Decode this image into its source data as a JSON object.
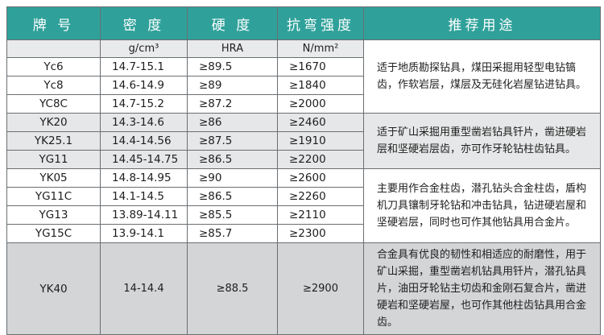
{
  "headers": {
    "grade": "牌 号",
    "density": "密 度",
    "hardness": "硬 度",
    "strength": "抗弯强度",
    "use": "推荐用途"
  },
  "units": {
    "density": "g/cm³",
    "hardness": "HRA",
    "strength": "N/mm²"
  },
  "groups": [
    {
      "use": "适于地质勘探钻具，煤田采掘用轻型电钻镐齿，作软岩层，煤层及无硅化岩屋钻进钻具。",
      "rows": [
        {
          "grade": "Yc6",
          "density": "14.7-15.1",
          "hardness": "≥89.5",
          "strength": "≥1670"
        },
        {
          "grade": "Yc8",
          "density": "14.6-14.9",
          "hardness": "≥89",
          "strength": "≥1840"
        },
        {
          "grade": "YC8C",
          "density": "14.7-15.2",
          "hardness": "≥87.2",
          "strength": "≥2000"
        }
      ]
    },
    {
      "use": "适于矿山采掘用重型凿岩钻具钎片，凿进硬岩层和坚硬岩层齿，亦可作牙轮钻柱齿钻具。",
      "rows": [
        {
          "grade": "YK20",
          "density": "14.3-14.6",
          "hardness": "≥86",
          "strength": "≥2460"
        },
        {
          "grade": "YK25.1",
          "density": "14.4-14.56",
          "hardness": "≥87.5",
          "strength": "≥1910"
        },
        {
          "grade": "YG11",
          "density": "14.45-14.75",
          "hardness": "≥86.5",
          "strength": "≥2200"
        }
      ]
    },
    {
      "use": "主要用作合金柱齿，潜孔钻头合金柱齿，盾构机刀具镶制牙轮钻和冲击钻具，钻进硬岩屋和坚硬岩层，同时也可作其他钻具用合金片。",
      "rows": [
        {
          "grade": "YK05",
          "density": "14.8-14.95",
          "hardness": "≥90",
          "strength": "≥2600"
        },
        {
          "grade": "YG11C",
          "density": "14.1-14.5",
          "hardness": "≥86.5",
          "strength": "≥2260"
        },
        {
          "grade": "YG13",
          "density": "13.89-14.11",
          "hardness": "≥85.5",
          "strength": "≥2110"
        },
        {
          "grade": "YG15C",
          "density": "13.9-14.1",
          "hardness": "≥85.7",
          "strength": "≥2300"
        }
      ]
    },
    {
      "use": "合金具有优良的韧性和相适应的耐磨性，用于矿山采掘，重型凿岩机钻具用钎片，潜孔钻具片，油田牙轮钻主切齿和金刚石复合片，凿进硬岩和坚硬岩屋，也可作其他柱齿钻具用合金齿。",
      "rows": [
        {
          "grade": "YK40",
          "density": "14-14.4",
          "hardness": "≥88.5",
          "strength": "≥2900"
        }
      ]
    }
  ],
  "colors": {
    "header_bg": "#2fa19a",
    "header_text": "#ffffff",
    "border": "#6a6f72",
    "row_gray": "#e6e7e8",
    "row_dark": "#d3d5d7"
  }
}
